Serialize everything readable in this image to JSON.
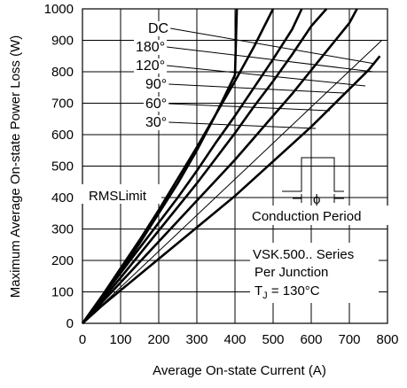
{
  "chart_data": {
    "type": "line",
    "title": "",
    "xlabel": "Average On-state Current (A)",
    "ylabel": "Maximum Average On-state Power Loss (W)",
    "xlim": [
      0,
      800
    ],
    "ylim": [
      0,
      1000
    ],
    "x_ticks": [
      "0",
      "100",
      "200",
      "300",
      "400",
      "500",
      "600",
      "700",
      "800"
    ],
    "y_ticks": [
      "0",
      "100",
      "200",
      "300",
      "400",
      "500",
      "600",
      "700",
      "800",
      "900",
      "1000"
    ],
    "grid": true,
    "series": [
      {
        "name": "DC",
        "x": [
          0,
          50,
          100,
          150,
          200,
          250,
          300,
          350,
          400,
          405
        ],
        "y": [
          0,
          80,
          165,
          255,
          350,
          445,
          550,
          665,
          790,
          1000
        ]
      },
      {
        "name": "180°",
        "x": [
          0,
          50,
          100,
          150,
          200,
          250,
          300,
          350,
          400,
          450,
          500
        ],
        "y": [
          0,
          85,
          175,
          265,
          360,
          460,
          560,
          665,
          770,
          880,
          1000
        ]
      },
      {
        "name": "120°",
        "x": [
          0,
          50,
          100,
          150,
          200,
          250,
          300,
          350,
          400,
          450,
          500,
          550,
          575
        ],
        "y": [
          0,
          80,
          160,
          240,
          320,
          400,
          485,
          575,
          660,
          750,
          840,
          935,
          1000
        ]
      },
      {
        "name": "90°",
        "x": [
          0,
          50,
          100,
          150,
          200,
          250,
          300,
          350,
          400,
          450,
          500,
          550,
          600,
          640
        ],
        "y": [
          0,
          72,
          145,
          220,
          295,
          370,
          445,
          525,
          605,
          690,
          770,
          855,
          945,
          1000
        ]
      },
      {
        "name": "60°",
        "x": [
          0,
          50,
          100,
          150,
          200,
          250,
          300,
          350,
          400,
          450,
          500,
          550,
          600,
          650,
          700,
          720
        ],
        "y": [
          0,
          65,
          130,
          195,
          260,
          325,
          390,
          455,
          520,
          590,
          660,
          730,
          805,
          880,
          955,
          1000
        ]
      },
      {
        "name": "30°",
        "x": [
          0,
          50,
          100,
          150,
          200,
          250,
          300,
          350,
          400,
          450,
          500,
          550,
          600,
          650,
          700,
          750,
          780
        ],
        "y": [
          0,
          55,
          105,
          155,
          205,
          255,
          305,
          355,
          405,
          460,
          515,
          570,
          625,
          685,
          745,
          805,
          850
        ]
      },
      {
        "name": "RMS Limit",
        "x": [
          0,
          785
        ],
        "y": [
          0,
          900
        ]
      }
    ],
    "annotations": {
      "rms_label": "RMSLimit",
      "conduction_label": "Conduction Period",
      "phi": "ϕ",
      "series_line": "VSK.500.. Series",
      "junction_line": "Per Junction",
      "temp_prefix": "T",
      "temp_sub": "J",
      "temp_value": " = 130°C"
    }
  }
}
